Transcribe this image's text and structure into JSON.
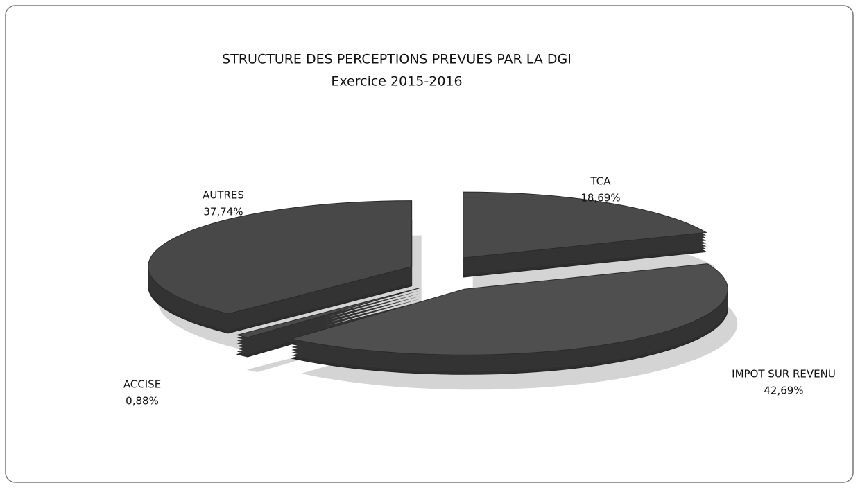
{
  "chart_data": {
    "type": "pie3d",
    "title": "STRUCTURE DES PERCEPTIONS PREVUES PAR LA DGI",
    "subtitle": "Exercice 2015-2016",
    "categories": [
      "TCA",
      "IMPOT SUR REVENU",
      "ACCISE",
      "AUTRES"
    ],
    "values": [
      18.69,
      42.69,
      0.88,
      37.74
    ],
    "value_labels": [
      "18,69%",
      "42,69%",
      "0,88%",
      "37,74%"
    ],
    "colors": [
      "#4a4a4a",
      "#4f4f4f",
      "#4a4a4a",
      "#484848"
    ]
  }
}
